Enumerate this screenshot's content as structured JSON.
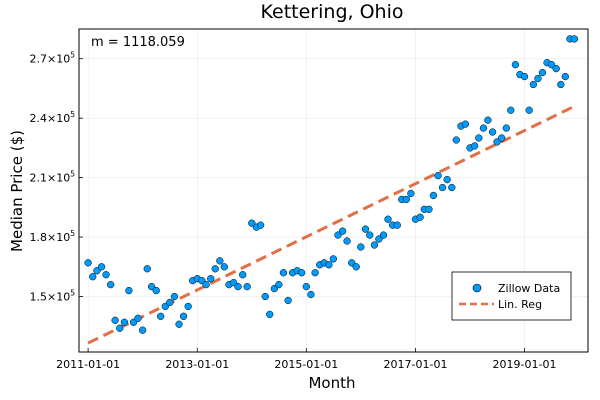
{
  "chart_data": {
    "type": "scatter",
    "title": "Kettering, Ohio",
    "xlabel": "Month",
    "ylabel": "Median Price ($)",
    "annotation": "m = 1118.059",
    "grid": true,
    "legend_position": "bottom-right",
    "xlim": [
      "2010-11-01",
      "2020-03-01"
    ],
    "ylim": [
      122000,
      285000
    ],
    "x_ticks": [
      "2011-01-01",
      "2013-01-01",
      "2015-01-01",
      "2017-01-01",
      "2019-01-01"
    ],
    "y_ticks": [
      {
        "value": 150000,
        "mantissa": "1.5×10",
        "exponent": "5"
      },
      {
        "value": 180000,
        "mantissa": "1.8×10",
        "exponent": "5"
      },
      {
        "value": 210000,
        "mantissa": "2.1×10",
        "exponent": "5"
      },
      {
        "value": 240000,
        "mantissa": "2.4×10",
        "exponent": "5"
      },
      {
        "value": 270000,
        "mantissa": "2.7×10",
        "exponent": "5"
      }
    ],
    "series": [
      {
        "name": "Zillow Data",
        "kind": "scatter",
        "color": "#009AFA",
        "x": [
          "2011-01-01",
          "2011-02-01",
          "2011-03-01",
          "2011-04-01",
          "2011-05-01",
          "2011-06-01",
          "2011-07-01",
          "2011-08-01",
          "2011-09-01",
          "2011-10-01",
          "2011-11-01",
          "2011-12-01",
          "2012-01-01",
          "2012-02-01",
          "2012-03-01",
          "2012-04-01",
          "2012-05-01",
          "2012-06-01",
          "2012-07-01",
          "2012-08-01",
          "2012-09-01",
          "2012-10-01",
          "2012-11-01",
          "2012-12-01",
          "2013-01-01",
          "2013-02-01",
          "2013-03-01",
          "2013-04-01",
          "2013-05-01",
          "2013-06-01",
          "2013-07-01",
          "2013-08-01",
          "2013-09-01",
          "2013-10-01",
          "2013-11-01",
          "2013-12-01",
          "2014-01-01",
          "2014-02-01",
          "2014-03-01",
          "2014-04-01",
          "2014-05-01",
          "2014-06-01",
          "2014-07-01",
          "2014-08-01",
          "2014-09-01",
          "2014-10-01",
          "2014-11-01",
          "2014-12-01",
          "2015-01-01",
          "2015-02-01",
          "2015-03-01",
          "2015-04-01",
          "2015-05-01",
          "2015-06-01",
          "2015-07-01",
          "2015-08-01",
          "2015-09-01",
          "2015-10-01",
          "2015-11-01",
          "2015-12-01",
          "2016-01-01",
          "2016-02-01",
          "2016-03-01",
          "2016-04-01",
          "2016-05-01",
          "2016-06-01",
          "2016-07-01",
          "2016-08-01",
          "2016-09-01",
          "2016-10-01",
          "2016-11-01",
          "2016-12-01",
          "2017-01-01",
          "2017-02-01",
          "2017-03-01",
          "2017-04-01",
          "2017-05-01",
          "2017-06-01",
          "2017-07-01",
          "2017-08-01",
          "2017-09-01",
          "2017-10-01",
          "2017-11-01",
          "2017-12-01",
          "2018-01-01",
          "2018-02-01",
          "2018-03-01",
          "2018-04-01",
          "2018-05-01",
          "2018-06-01",
          "2018-07-01",
          "2018-08-01",
          "2018-09-01",
          "2018-10-01",
          "2018-11-01",
          "2018-12-01",
          "2019-01-01",
          "2019-02-01",
          "2019-03-01",
          "2019-04-01",
          "2019-05-01",
          "2019-06-01",
          "2019-07-01",
          "2019-08-01",
          "2019-09-01",
          "2019-10-01",
          "2019-11-01",
          "2019-12-01"
        ],
        "y": [
          167000,
          160000,
          163000,
          165000,
          161000,
          156000,
          138000,
          134000,
          137000,
          153000,
          137000,
          139000,
          133000,
          164000,
          155000,
          153000,
          140000,
          145000,
          147000,
          150000,
          136000,
          140000,
          145000,
          158000,
          159000,
          158000,
          156000,
          159000,
          164000,
          168000,
          165000,
          156000,
          157000,
          155000,
          161000,
          155000,
          187000,
          185000,
          186000,
          150000,
          141000,
          154000,
          156000,
          162000,
          148000,
          162000,
          163000,
          162000,
          155000,
          151000,
          162000,
          166000,
          167000,
          166000,
          169000,
          181000,
          183000,
          178000,
          167000,
          165000,
          175000,
          184000,
          181000,
          176000,
          179000,
          181000,
          189000,
          186000,
          186000,
          199000,
          199000,
          202000,
          189000,
          190000,
          194000,
          194000,
          201000,
          211000,
          205000,
          209000,
          205000,
          229000,
          236000,
          237000,
          225000,
          226000,
          230000,
          235000,
          239000,
          233000,
          228000,
          230000,
          235000,
          244000,
          267000,
          262000,
          261000,
          244000,
          257000,
          260000,
          263000,
          268000,
          267000,
          265000,
          257000,
          261000,
          280000,
          280000
        ]
      },
      {
        "name": "Lin. Reg",
        "kind": "line",
        "dash": true,
        "color": "#E26F46",
        "x": [
          "2011-01-01",
          "2019-12-01"
        ],
        "y": [
          126500,
          246000
        ]
      }
    ]
  }
}
